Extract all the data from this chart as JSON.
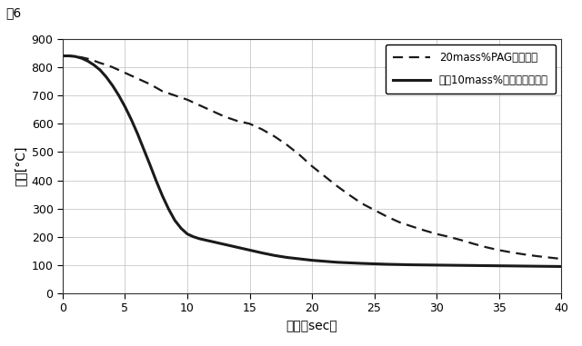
{
  "title": "図6",
  "xlabel": "時間［sec］",
  "ylabel": "温度[°C]",
  "xlim": [
    0,
    40
  ],
  "ylim": [
    0,
    900
  ],
  "xticks": [
    0,
    5,
    10,
    15,
    20,
    25,
    30,
    35,
    40
  ],
  "yticks": [
    0,
    100,
    200,
    300,
    400,
    500,
    600,
    700,
    800,
    900
  ],
  "legend1": "20mass%PAG系水溶液",
  "legend2": "〜＋10mass%炭酸ナトリウム",
  "dashed_x": [
    0,
    0.5,
    1,
    1.5,
    2,
    2.5,
    3,
    3.5,
    4,
    4.5,
    5,
    6,
    7,
    8,
    9,
    10,
    11,
    12,
    13,
    14,
    15,
    16,
    17,
    18,
    19,
    20,
    21,
    22,
    23,
    24,
    25,
    26,
    27,
    28,
    29,
    30,
    31,
    32,
    33,
    34,
    35,
    36,
    37,
    38,
    39,
    40
  ],
  "dashed_y": [
    840,
    840,
    838,
    835,
    830,
    823,
    815,
    808,
    800,
    790,
    780,
    760,
    740,
    715,
    700,
    685,
    665,
    645,
    625,
    610,
    600,
    580,
    555,
    525,
    490,
    450,
    415,
    380,
    348,
    318,
    295,
    272,
    252,
    237,
    223,
    210,
    200,
    188,
    175,
    163,
    153,
    145,
    138,
    132,
    127,
    122
  ],
  "solid_x": [
    0,
    0.5,
    1,
    1.5,
    2,
    2.5,
    3,
    3.5,
    4,
    4.5,
    5,
    5.5,
    6,
    6.5,
    7,
    7.5,
    8,
    8.5,
    9,
    9.5,
    10,
    10.5,
    11,
    11.5,
    12,
    12.5,
    13,
    13.5,
    14,
    14.5,
    15,
    16,
    17,
    18,
    19,
    20,
    22,
    24,
    26,
    28,
    30,
    32,
    34,
    36,
    38,
    40
  ],
  "solid_y": [
    840,
    840,
    838,
    832,
    822,
    808,
    790,
    765,
    735,
    700,
    660,
    615,
    565,
    510,
    455,
    398,
    345,
    298,
    258,
    230,
    210,
    200,
    193,
    188,
    183,
    178,
    173,
    168,
    163,
    158,
    153,
    143,
    134,
    127,
    122,
    117,
    110,
    106,
    103,
    101,
    100,
    99,
    98,
    97,
    96,
    95
  ],
  "background_color": "#ffffff",
  "line_color": "#1a1a1a",
  "grid_color": "#bbbbbb"
}
